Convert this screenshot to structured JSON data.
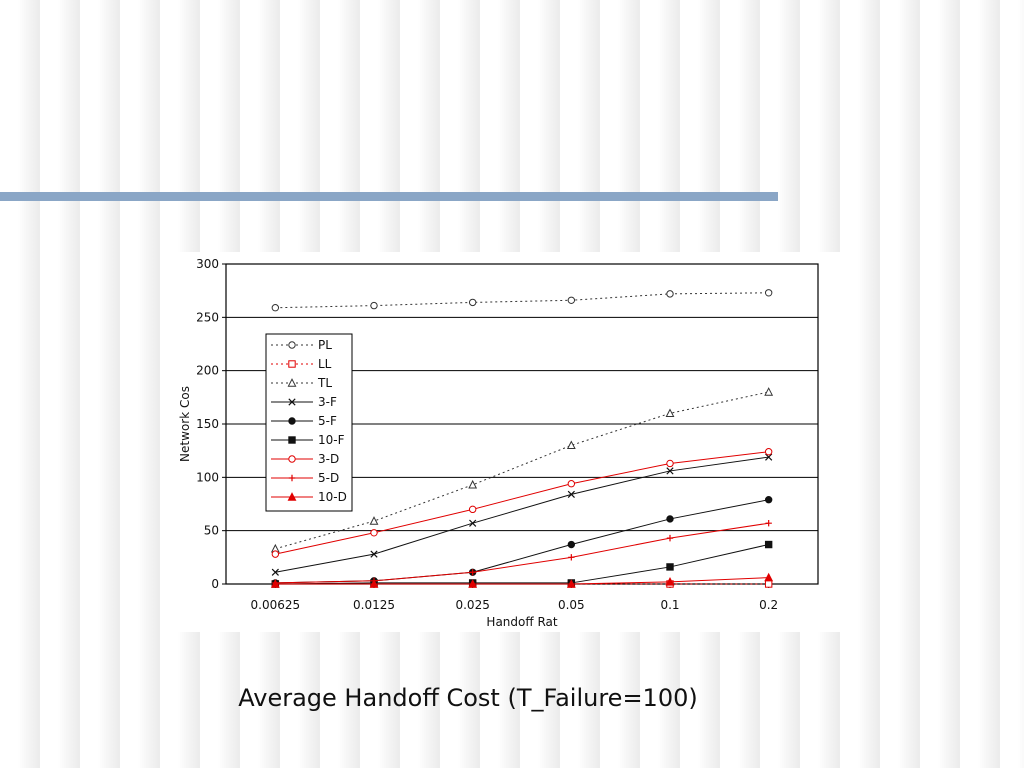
{
  "slide": {
    "caption": "Average Handoff Cost (T_Failure=100)",
    "accent_color": "#8aa6c6"
  },
  "chart_data": {
    "type": "line",
    "title": "",
    "xlabel": "Handoff Rat",
    "ylabel": "Network Cos",
    "categories": [
      "0.00625",
      "0.0125",
      "0.025",
      "0.05",
      "0.1",
      "0.2"
    ],
    "ylim": [
      0,
      300
    ],
    "yticks": [
      0,
      50,
      100,
      150,
      200,
      250,
      300
    ],
    "grid": true,
    "legend_position": "left",
    "series": [
      {
        "name": "PL",
        "values": [
          259,
          261,
          264,
          266,
          272,
          273
        ],
        "color": "#333333",
        "dash": true,
        "marker": "circle-open"
      },
      {
        "name": "LL",
        "values": [
          0,
          0,
          0,
          0,
          0,
          0
        ],
        "color": "#e00000",
        "dash": true,
        "marker": "square-open"
      },
      {
        "name": "TL",
        "values": [
          33,
          59,
          93,
          130,
          160,
          180
        ],
        "color": "#333333",
        "dash": true,
        "marker": "triangle-open"
      },
      {
        "name": "3-F",
        "values": [
          11,
          28,
          57,
          84,
          106,
          119
        ],
        "color": "#111111",
        "dash": false,
        "marker": "x"
      },
      {
        "name": "5-F",
        "values": [
          1,
          3,
          11,
          37,
          61,
          79
        ],
        "color": "#111111",
        "dash": false,
        "marker": "circle-filled"
      },
      {
        "name": "10-F",
        "values": [
          0,
          1,
          1,
          1,
          16,
          37
        ],
        "color": "#111111",
        "dash": false,
        "marker": "square-filled"
      },
      {
        "name": "3-D",
        "values": [
          28,
          48,
          70,
          94,
          113,
          124
        ],
        "color": "#e00000",
        "dash": false,
        "marker": "circle-open"
      },
      {
        "name": "5-D",
        "values": [
          1,
          3,
          11,
          25,
          43,
          57
        ],
        "color": "#e00000",
        "dash": false,
        "marker": "plus"
      },
      {
        "name": "10-D",
        "values": [
          0,
          0,
          0,
          0,
          2,
          6
        ],
        "color": "#e00000",
        "dash": false,
        "marker": "triangle-filled"
      }
    ]
  }
}
